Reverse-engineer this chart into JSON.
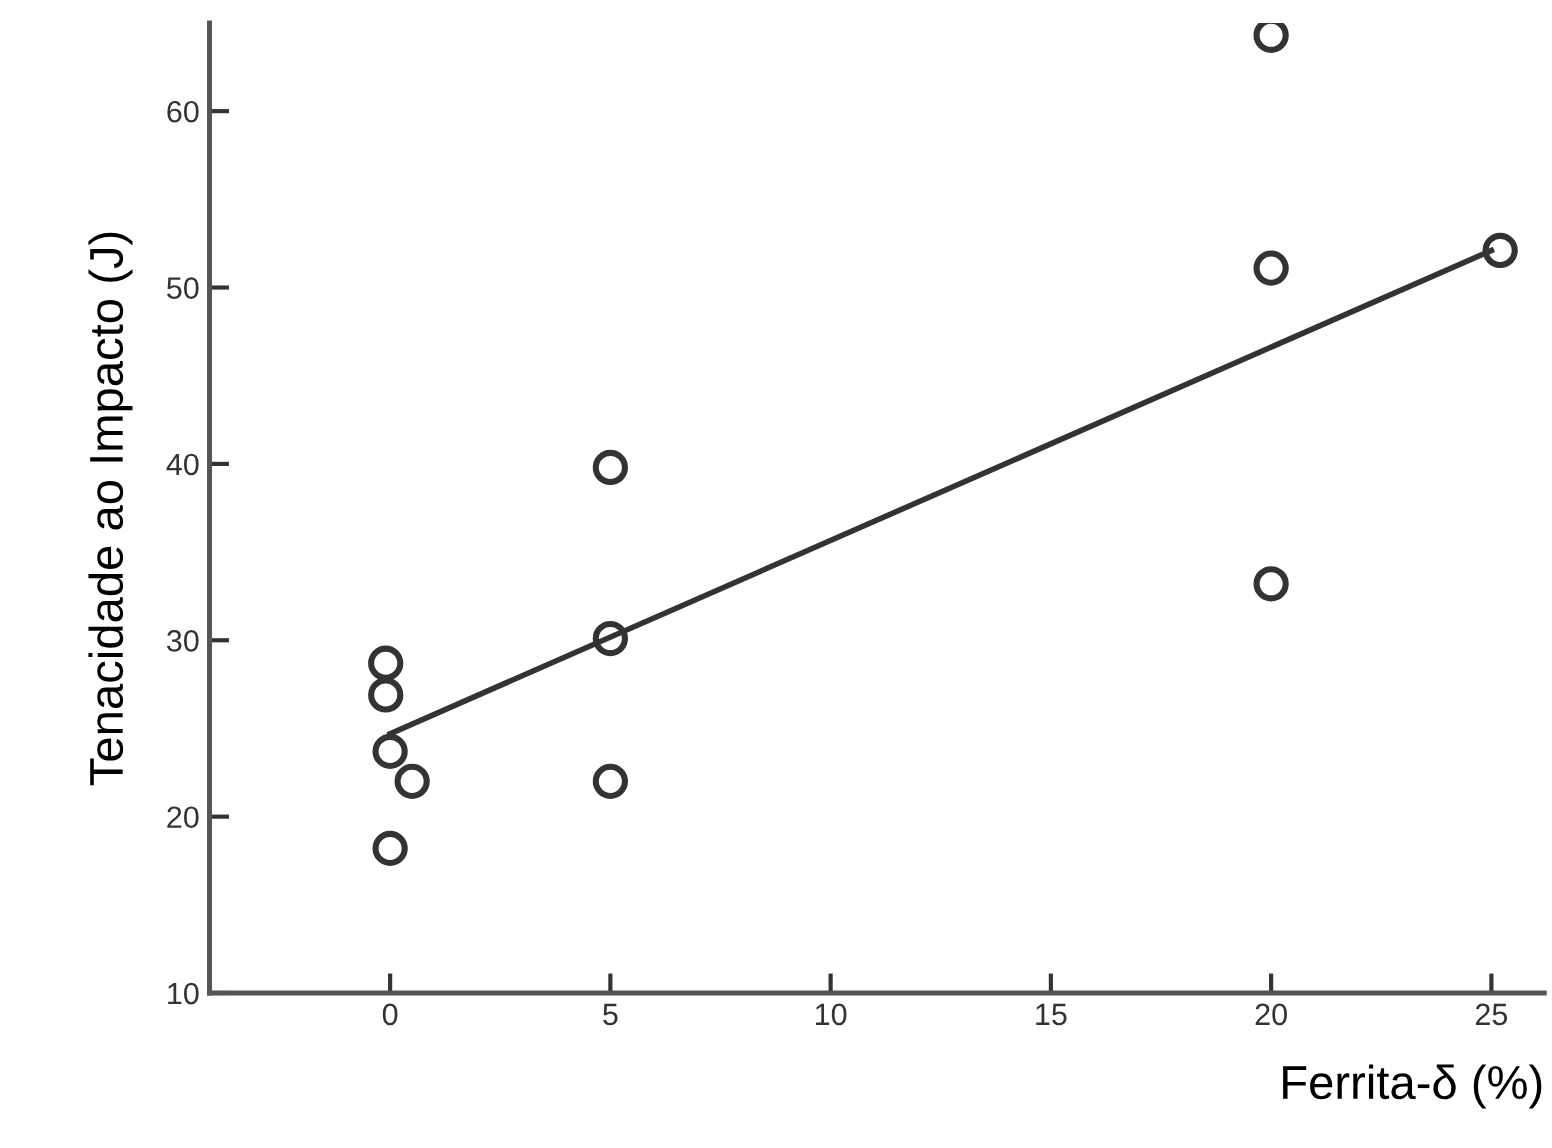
{
  "chart_data": {
    "type": "scatter",
    "xlabel": "Ferrita-δ (%)",
    "ylabel": "Tenacidade ao Impacto (J)",
    "xlim": [
      -4.1,
      26.2
    ],
    "ylim": [
      10,
      65
    ],
    "xticks": [
      0,
      5,
      10,
      15,
      20,
      25
    ],
    "yticks": [
      10,
      20,
      30,
      40,
      50,
      60
    ],
    "grid": false,
    "series": [
      {
        "color": "#333333",
        "marker": "circle",
        "x": [
          -0.1,
          -0.1,
          0,
          0.5,
          0,
          5,
          5,
          5,
          20,
          20,
          20,
          25.2
        ],
        "values": [
          28.7,
          26.9,
          23.7,
          22.0,
          18.2,
          39.8,
          30.1,
          22.0,
          64.3,
          51.1,
          33.2,
          52.1
        ]
      },
      {
        "type": "line",
        "color": "#333333",
        "marker": "none",
        "line_style": "solid",
        "x": [
          0,
          25
        ],
        "values": [
          24.7,
          52.1
        ]
      }
    ]
  }
}
